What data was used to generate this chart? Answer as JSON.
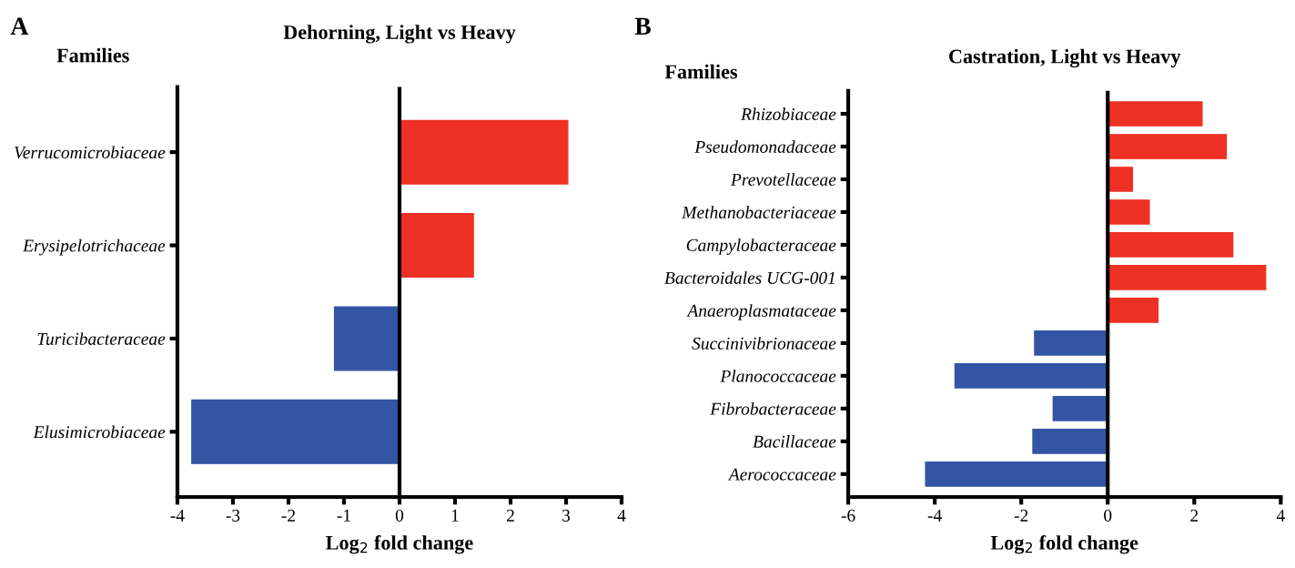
{
  "chart_data": [
    {
      "type": "bar",
      "orientation": "horizontal",
      "title": "Dehorning, Light vs Heavy",
      "ylabel": "Families",
      "xlabel": "Log$_{2}$ fold change",
      "annotations": [
        "A"
      ],
      "categories": [
        "Verrucomicrobiaceae",
        "Erysipelotrichaceae",
        "Turicibacteraceae",
        "Elusimicrobiaceae"
      ],
      "values": [
        3.03,
        1.33,
        -1.17,
        -3.74
      ],
      "colors": [
        "#ee3124",
        "#ee3124",
        "#3455a4",
        "#3455a4"
      ],
      "xlim": [
        -4,
        4
      ],
      "xticks": [
        -4,
        -3,
        -2,
        -1,
        0,
        1,
        2,
        3,
        4
      ],
      "grid": false,
      "legend": false,
      "ref_lines": [
        {
          "axis": "x",
          "value": 0,
          "color": "#000000"
        }
      ]
    },
    {
      "type": "bar",
      "orientation": "horizontal",
      "title": "Castration, Light vs Heavy",
      "ylabel": "Families",
      "xlabel": "Log$_{2}$ fold change",
      "annotations": [
        "B"
      ],
      "categories": [
        "Rhizobiaceae",
        "Pseudomonadaceae",
        "Prevotellaceae",
        "Methanobacteriaceae",
        "Campylobacteraceae",
        "Bacteroidales UCG-001",
        "Anaeroplasmataceae",
        "Succinivibrionaceae",
        "Planococcaceae",
        "Fibrobacteraceae",
        "Bacillaceae",
        "Aerococcaceae"
      ],
      "values": [
        2.18,
        2.74,
        0.57,
        0.96,
        2.89,
        3.65,
        1.16,
        -1.69,
        -3.53,
        -1.26,
        -1.73,
        -4.21
      ],
      "colors": [
        "#ee3124",
        "#ee3124",
        "#ee3124",
        "#ee3124",
        "#ee3124",
        "#ee3124",
        "#ee3124",
        "#3455a4",
        "#3455a4",
        "#3455a4",
        "#3455a4",
        "#3455a4"
      ],
      "xlim": [
        -6,
        4
      ],
      "xticks": [
        -6,
        -4,
        -2,
        0,
        2,
        4
      ],
      "grid": false,
      "legend": false,
      "ref_lines": [
        {
          "axis": "x",
          "value": 0,
          "color": "#000000"
        }
      ]
    }
  ]
}
